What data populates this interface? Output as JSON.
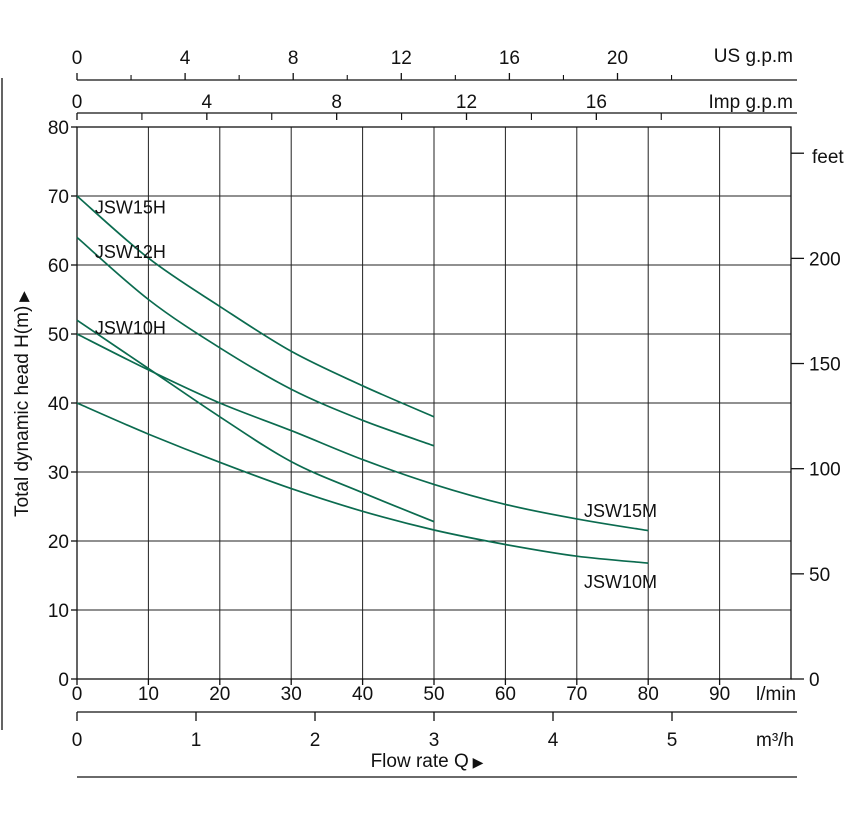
{
  "chart_data": {
    "type": "line",
    "xlabel": "Flow  rate Q",
    "ylabel": "Total dynamic head H(m)",
    "x_unit": "l/min",
    "xlim": [
      0,
      100
    ],
    "ylim": [
      0,
      80
    ],
    "x_ticks": [
      "0",
      "10",
      "20",
      "30",
      "40",
      "50",
      "60",
      "70",
      "80",
      "90"
    ],
    "y_ticks": [
      "0",
      "10",
      "20",
      "30",
      "40",
      "50",
      "60",
      "70",
      "80"
    ],
    "grid": true,
    "secondary_axes": {
      "us_gpm": {
        "unit": "US g.p.m",
        "ticks": [
          "0",
          "4",
          "8",
          "12",
          "16",
          "20"
        ]
      },
      "imp_gpm": {
        "unit": "Imp g.p.m",
        "ticks": [
          "0",
          "4",
          "8",
          "12",
          "16"
        ]
      },
      "m3h": {
        "unit": "m³/h",
        "ticks": [
          "0",
          "1",
          "2",
          "3",
          "4",
          "5"
        ]
      },
      "feet": {
        "unit": "feet",
        "ticks": [
          "0",
          "50",
          "100",
          "150",
          "200"
        ]
      }
    },
    "series": [
      {
        "name": "JSW15H",
        "color": "#0b6b4f",
        "x": [
          0,
          10,
          20,
          30,
          40,
          50
        ],
        "y": [
          70,
          61,
          54,
          47.5,
          42.5,
          38
        ]
      },
      {
        "name": "JSW12H",
        "color": "#0b6b4f",
        "x": [
          0,
          10,
          20,
          30,
          40,
          50
        ],
        "y": [
          64,
          55,
          48,
          42,
          37.5,
          33.8
        ]
      },
      {
        "name": "JSW10H",
        "color": "#0b6b4f",
        "x": [
          0,
          10,
          20,
          30,
          40,
          50
        ],
        "y": [
          52,
          45,
          38,
          31.5,
          27,
          22.8
        ]
      },
      {
        "name": "JSW15M",
        "color": "#0b6b4f",
        "x": [
          0,
          10,
          20,
          30,
          40,
          50,
          60,
          70,
          80
        ],
        "y": [
          50,
          44.8,
          40,
          36,
          31.8,
          28.2,
          25.3,
          23.2,
          21.5
        ]
      },
      {
        "name": "JSW10M",
        "color": "#0b6b4f",
        "x": [
          0,
          10,
          20,
          30,
          40,
          50,
          60,
          70,
          80
        ],
        "y": [
          40,
          35.5,
          31.4,
          27.6,
          24.3,
          21.6,
          19.5,
          17.8,
          16.8
        ]
      }
    ]
  }
}
